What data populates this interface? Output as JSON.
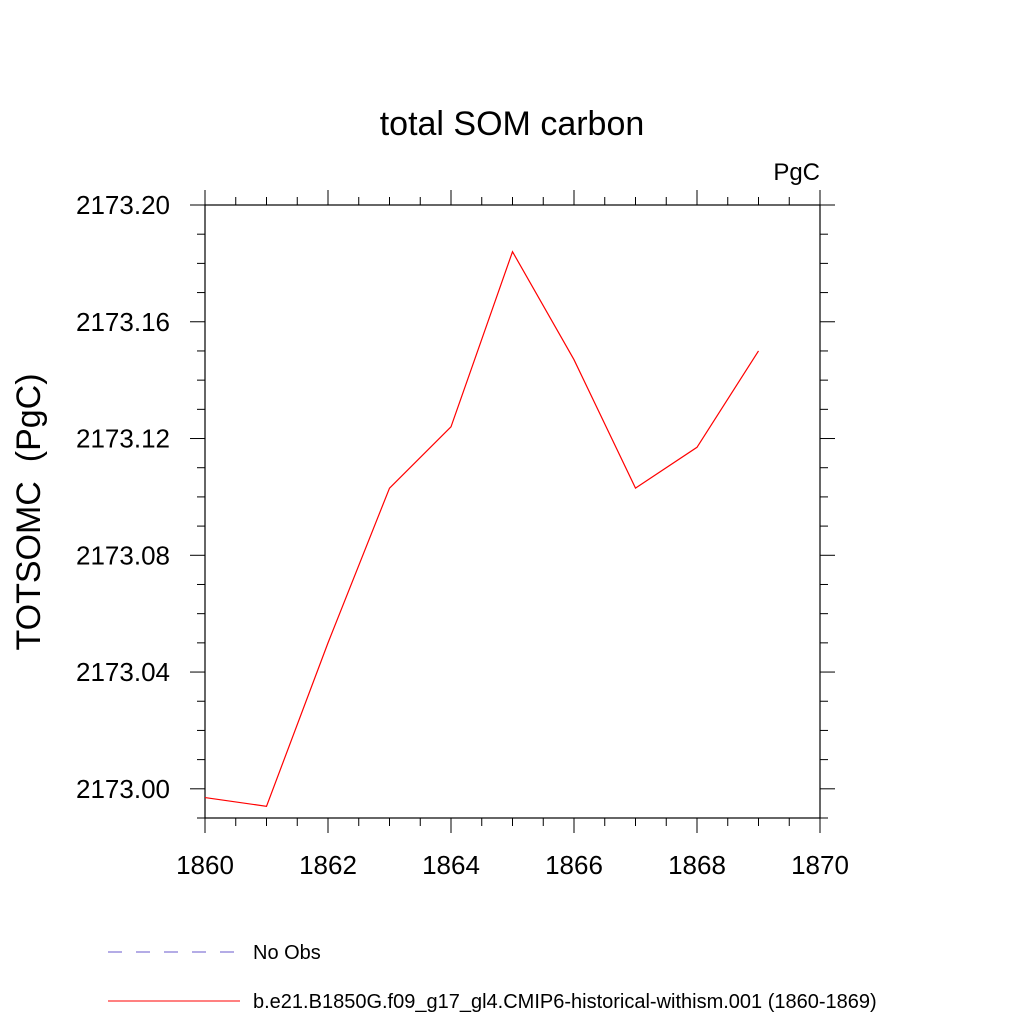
{
  "chart_data": {
    "type": "line",
    "title": "total SOM carbon",
    "units": "PgC",
    "ylabel": "TOTSOMC  (PgC)",
    "xlabel": "",
    "xlim": [
      1860,
      1870
    ],
    "ylim": [
      2172.99,
      2173.2
    ],
    "x_ticks": [
      1860,
      1862,
      1864,
      1866,
      1868,
      1870
    ],
    "x_tick_labels": [
      "1860",
      "1862",
      "1864",
      "1866",
      "1868",
      "1870"
    ],
    "y_ticks": [
      2173.0,
      2173.04,
      2173.08,
      2173.12,
      2173.16,
      2173.2
    ],
    "y_tick_labels": [
      "2173.00",
      "2173.04",
      "2173.08",
      "2173.12",
      "2173.16",
      "2173.20"
    ],
    "grid": false,
    "legend_position": "bottom-left",
    "series": [
      {
        "name": "No Obs",
        "color": "#6a5acd",
        "dash": "dashed",
        "x": [],
        "y": []
      },
      {
        "name": "b.e21.B1850G.f09_g17_gl4.CMIP6-historical-withism.001 (1860-1869)",
        "color": "#ff0000",
        "dash": "solid",
        "x": [
          1860,
          1861,
          1862,
          1863,
          1864,
          1865,
          1866,
          1867,
          1868,
          1869
        ],
        "y": [
          2172.997,
          2172.994,
          2173.05,
          2173.103,
          2173.124,
          2173.184,
          2173.147,
          2173.103,
          2173.117,
          2173.15
        ]
      }
    ]
  }
}
